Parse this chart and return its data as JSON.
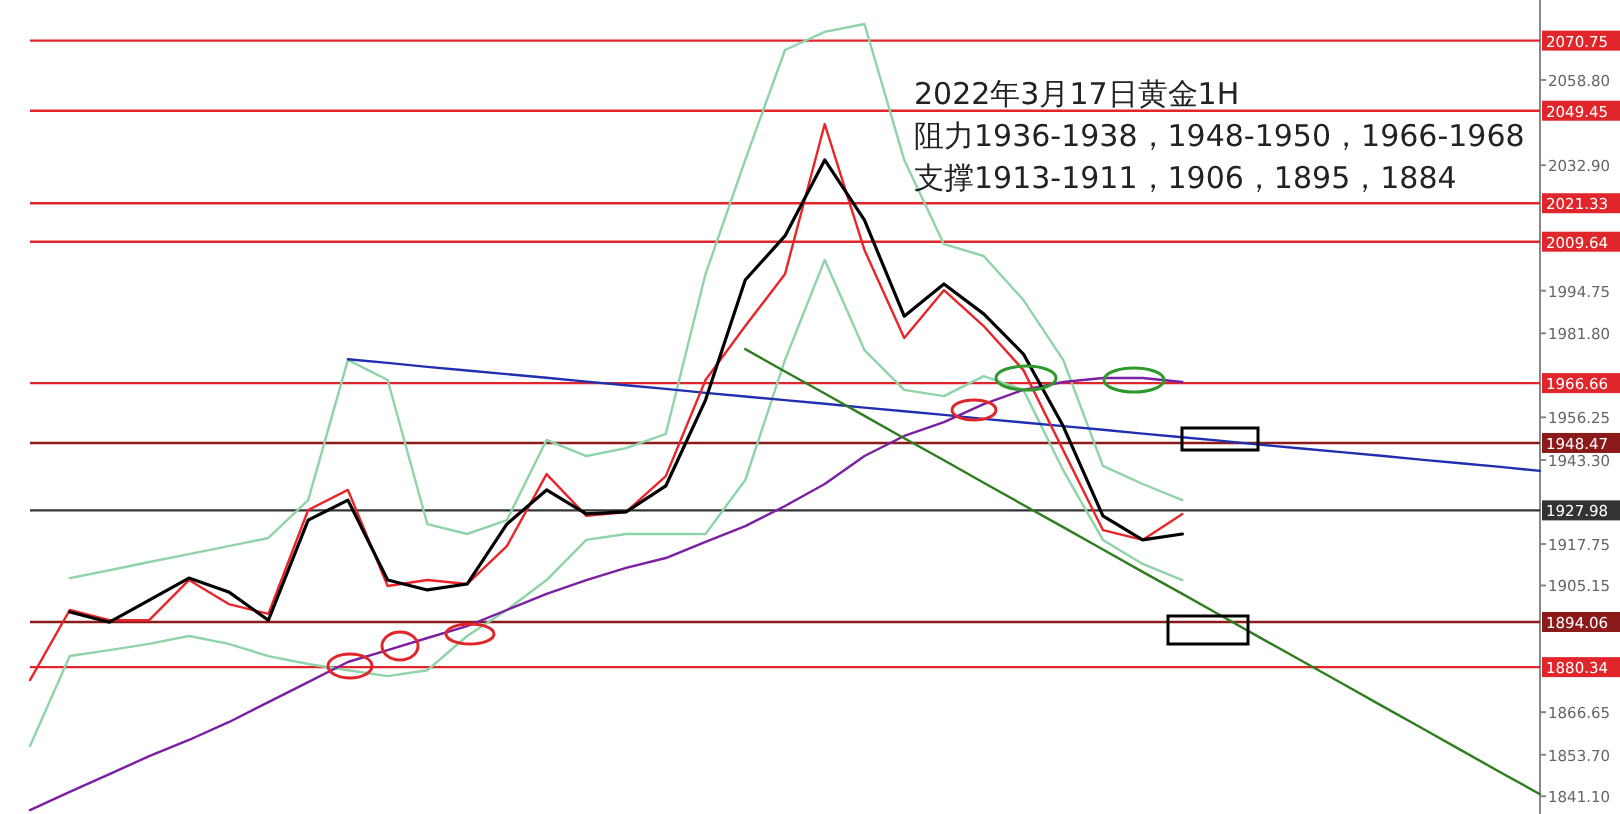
{
  "chart_data": {
    "type": "line",
    "annotations": [
      "2022年3月17日黄金1H",
      "阻力1936-1938，1948-1950，1966-1968",
      "支撑1913-1911，1906，1895，1884"
    ],
    "categories": [
      null,
      null,
      null,
      null,
      null,
      null,
      null,
      null,
      null,
      null,
      null,
      null,
      null,
      null,
      null,
      null,
      null,
      null,
      null,
      null,
      null,
      null,
      null,
      null,
      null,
      null,
      null,
      null,
      null,
      null,
      null,
      null,
      null,
      null,
      null,
      null,
      null,
      null,
      null
    ],
    "ylim": [
      1835.7,
      2083.1
    ],
    "yticks": [
      {
        "value": 1841.1,
        "label": "1841.10"
      },
      {
        "value": 1853.7,
        "label": "1853.70"
      },
      1866.65,
      1905.15,
      1917.75,
      {
        "value": 1943.3,
        "label": "1943.30"
      },
      1956.25,
      {
        "value": 1981.8,
        "label": "1981.80"
      },
      1994.75,
      {
        "value": 2032.9,
        "label": "2032.90"
      },
      {
        "value": 2058.8,
        "label": "2058.80"
      }
    ],
    "grid": false,
    "ref_lines": [
      {
        "axis": "y",
        "value": 2070.75,
        "label": "2070.75",
        "color": "#e0262a"
      },
      {
        "axis": "y",
        "value": 2049.45,
        "label": "2049.45",
        "color": "#e0262a"
      },
      {
        "axis": "y",
        "value": 2021.33,
        "label": "2021.33",
        "color": "#e0262a"
      },
      {
        "axis": "y",
        "value": 2009.64,
        "label": "2009.64",
        "color": "#e0262a"
      },
      {
        "axis": "y",
        "value": 1966.66,
        "label": "1966.66",
        "color": "#e0262a"
      },
      {
        "axis": "y",
        "value": 1948.47,
        "label": "1948.47",
        "color": "#8b1a1a"
      },
      {
        "axis": "y",
        "value": 1927.98,
        "label": "1927.98",
        "color": "#333333"
      },
      {
        "axis": "y",
        "value": 1894.06,
        "label": "1894.06",
        "color": "#8b1a1a"
      },
      {
        "axis": "y",
        "value": 1880.34,
        "label": "1880.34",
        "color": "#e0262a"
      }
    ],
    "series": [
      {
        "color": "#8fd3a8",
        "values": [
          null,
          1907.4,
          1909.8,
          1912.3,
          1914.7,
          1917.1,
          1919.6,
          1931.1,
          1973.7,
          1967.6,
          1923.8,
          1920.8,
          1925.0,
          1949.4,
          1944.5,
          1946.9,
          1951.2,
          1999.8,
          2034.5,
          2067.9,
          2073.4,
          2075.8,
          2034.5,
          2008.9,
          2005.3,
          1991.9,
          1973.7,
          1941.5,
          1936.0,
          1931.1,
          null,
          null,
          null,
          null,
          null,
          null,
          null,
          null,
          null
        ]
      },
      {
        "color": "#8fd3a8",
        "values": [
          1856.4,
          1883.7,
          1885.5,
          1887.4,
          1889.8,
          1887.4,
          1883.7,
          1881.3,
          1879.4,
          1877.6,
          1879.4,
          1889.8,
          1897.7,
          1906.8,
          1919.0,
          1920.8,
          1920.8,
          1920.8,
          1937.2,
          1973.7,
          2004.1,
          1976.7,
          1964.6,
          1962.7,
          1968.8,
          1964.6,
          1940.2,
          1919.0,
          1911.7,
          1906.8,
          null,
          null,
          null,
          null,
          null,
          null,
          null,
          null,
          null
        ]
      },
      {
        "color": "#7b1fa2",
        "values": [
          1836.9,
          1842.4,
          1847.8,
          1853.3,
          1858.2,
          1863.6,
          1869.7,
          1875.8,
          1881.9,
          1885.5,
          1889.2,
          1892.8,
          1897.7,
          1902.6,
          1906.8,
          1910.5,
          1913.5,
          1918.4,
          1923.2,
          1929.3,
          1936.0,
          1944.5,
          1950.6,
          1954.8,
          1960.3,
          1964.6,
          1967.0,
          1968.2,
          1968.2,
          1967.0,
          null,
          null,
          null,
          null,
          null,
          null,
          null,
          null,
          null
        ]
      },
      {
        "color": "#1f2fb0",
        "values": [
          null,
          null,
          null,
          null,
          null,
          null,
          null,
          null,
          1973.9,
          1972.8,
          1971.6,
          1970.5,
          1969.4,
          1968.3,
          1967.1,
          1966.0,
          1964.9,
          1963.7,
          1962.6,
          1961.5,
          1960.4,
          1959.2,
          1958.1,
          1957.0,
          1955.8,
          1954.7,
          1953.6,
          1952.5,
          1951.3,
          1950.2,
          1949.1,
          1947.9,
          1946.8,
          1945.7,
          1944.6,
          1943.4,
          1942.3,
          1941.2,
          1940.0
        ]
      },
      {
        "color": "#2e7d1e",
        "values": [
          null,
          null,
          null,
          null,
          null,
          null,
          null,
          null,
          null,
          null,
          null,
          null,
          null,
          null,
          null,
          null,
          null,
          null,
          1977.0,
          1970.2,
          1963.5,
          1956.7,
          1949.9,
          1943.2,
          1936.4,
          1929.6,
          1922.9,
          1916.1,
          1909.3,
          1902.6,
          1895.8,
          1889.0,
          1882.3,
          1875.5,
          1868.7,
          1862.0,
          1855.2,
          1848.4,
          1841.7
        ]
      },
      {
        "color": "#e8262a",
        "values": [
          1876.4,
          1897.7,
          1894.6,
          1894.6,
          1906.8,
          1899.5,
          1896.5,
          1928.1,
          1934.2,
          1905.0,
          1906.8,
          1905.6,
          1917.1,
          1939.0,
          1926.3,
          1927.5,
          1938.4,
          1967.6,
          1984.0,
          1999.8,
          2045.4,
          2007.1,
          1980.4,
          1994.9,
          1984.0,
          1970.6,
          1946.3,
          1922.0,
          1919.0,
          1926.9,
          null,
          null,
          null,
          null,
          null,
          null,
          null,
          null,
          null
        ]
      },
      {
        "color": "#000000",
        "values": [
          null,
          1897.1,
          1894.0,
          1900.7,
          1907.4,
          1903.2,
          1894.6,
          1925.0,
          1931.1,
          1906.8,
          1903.8,
          1905.6,
          1923.8,
          1934.2,
          1926.9,
          1927.5,
          1935.4,
          1961.5,
          1998.0,
          2011.4,
          2034.5,
          2016.2,
          1987.0,
          1996.8,
          1987.7,
          1975.5,
          1953.6,
          1926.3,
          1919.0,
          1920.8,
          null,
          null,
          null,
          null,
          null,
          null,
          null,
          null,
          null
        ]
      }
    ]
  }
}
